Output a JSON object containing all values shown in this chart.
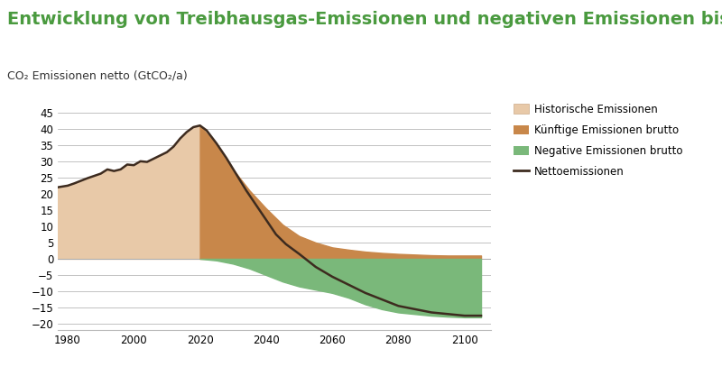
{
  "title": "Entwicklung von Treibhausgas-Emissionen und negativen Emissionen bis",
  "ylabel": "CO₂ Emissionen netto (GtCO₂/a)",
  "title_color": "#4a9a3f",
  "ylabel_color": "#333333",
  "title_fontsize": 14,
  "ylabel_fontsize": 9,
  "background_color": "#ffffff",
  "xlim": [
    1977,
    2108
  ],
  "ylim": [
    -22,
    48
  ],
  "yticks": [
    -20,
    -15,
    -10,
    -5,
    0,
    5,
    10,
    15,
    20,
    25,
    30,
    35,
    40,
    45
  ],
  "xticks": [
    1980,
    2000,
    2020,
    2040,
    2060,
    2080,
    2100
  ],
  "color_historical": "#e8c9a8",
  "color_future_brutto": "#c8874a",
  "color_negative": "#7ab87a",
  "color_netto_line": "#3d2b1f",
  "legend_labels": [
    "Historische Emissionen",
    "Künftige Emissionen brutto",
    "Negative Emissionen brutto",
    "Nettoemissionen"
  ],
  "hist_x": [
    1977,
    1980,
    1982,
    1984,
    1986,
    1988,
    1990,
    1992,
    1994,
    1996,
    1998,
    2000,
    2002,
    2004,
    2006,
    2008,
    2010,
    2012,
    2014,
    2016,
    2018,
    2020
  ],
  "hist_y": [
    22.0,
    22.5,
    23.2,
    24.0,
    24.8,
    25.5,
    26.2,
    27.5,
    27.0,
    27.5,
    29.0,
    28.8,
    30.0,
    29.8,
    30.8,
    31.8,
    32.8,
    34.5,
    37.0,
    39.0,
    40.5,
    41.0
  ],
  "future_x": [
    2020,
    2025,
    2030,
    2035,
    2040,
    2045,
    2050,
    2055,
    2060,
    2065,
    2070,
    2075,
    2080,
    2085,
    2090,
    2095,
    2100,
    2105
  ],
  "future_y": [
    41.0,
    35.0,
    27.5,
    21.0,
    15.5,
    10.5,
    7.0,
    5.0,
    3.5,
    2.8,
    2.2,
    1.8,
    1.5,
    1.3,
    1.1,
    1.0,
    1.0,
    1.0
  ],
  "neg_x": [
    2020,
    2025,
    2030,
    2035,
    2040,
    2045,
    2050,
    2055,
    2060,
    2065,
    2070,
    2075,
    2080,
    2085,
    2090,
    2095,
    2100,
    2105
  ],
  "neg_y": [
    0.0,
    -0.5,
    -1.5,
    -3.0,
    -5.0,
    -7.0,
    -8.5,
    -9.5,
    -10.5,
    -12.0,
    -14.0,
    -15.5,
    -16.5,
    -17.0,
    -17.5,
    -17.8,
    -18.0,
    -18.0
  ],
  "netto_x": [
    1977,
    1980,
    1982,
    1984,
    1986,
    1988,
    1990,
    1992,
    1994,
    1996,
    1998,
    2000,
    2002,
    2004,
    2006,
    2008,
    2010,
    2012,
    2014,
    2016,
    2018,
    2020,
    2022,
    2025,
    2028,
    2031,
    2034,
    2037,
    2040,
    2043,
    2046,
    2050,
    2055,
    2060,
    2065,
    2070,
    2075,
    2080,
    2085,
    2090,
    2095,
    2100,
    2105
  ],
  "netto_y": [
    22.0,
    22.5,
    23.2,
    24.0,
    24.8,
    25.5,
    26.2,
    27.5,
    27.0,
    27.5,
    29.0,
    28.8,
    30.0,
    29.8,
    30.8,
    31.8,
    32.8,
    34.5,
    37.0,
    39.0,
    40.5,
    41.0,
    39.5,
    35.5,
    31.0,
    26.0,
    21.0,
    16.5,
    12.0,
    7.5,
    4.5,
    1.5,
    -2.5,
    -5.5,
    -8.0,
    -10.5,
    -12.5,
    -14.5,
    -15.5,
    -16.5,
    -17.0,
    -17.5,
    -17.5
  ]
}
